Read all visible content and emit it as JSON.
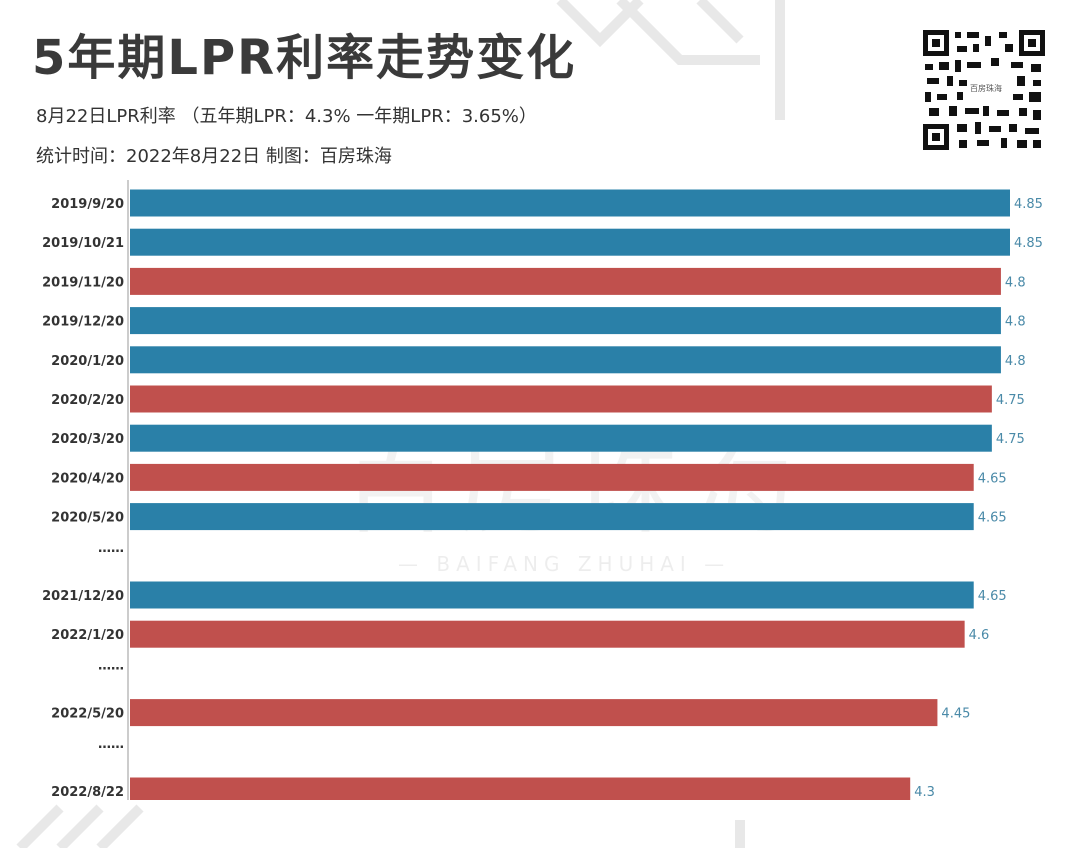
{
  "header": {
    "title": "5年期LPR利率走势变化",
    "subtitle": "8月22日LPR利率 （五年期LPR：4.3% 一年期LPR：3.65%）",
    "meta": "统计时间：2022年8月22日  制图：百房珠海",
    "qr_label": "百房珠海"
  },
  "watermark": {
    "main": "百房珠海",
    "sub": "— BAIFANG ZHUHAI —"
  },
  "colors": {
    "blue": "#2a80a8",
    "red": "#c0504d",
    "label": "#4a8aa8",
    "axis": "#999999"
  },
  "chart_data": {
    "type": "bar",
    "orientation": "horizontal",
    "categories": [
      "2019/9/20",
      "2019/10/21",
      "2019/11/20",
      "2019/12/20",
      "2020/1/20",
      "2020/2/20",
      "2020/3/20",
      "2020/4/20",
      "2020/5/20",
      "……",
      "2021/12/20",
      "2022/1/20",
      "……",
      "2022/5/20",
      "……",
      "2022/8/22"
    ],
    "values": [
      4.85,
      4.85,
      4.8,
      4.8,
      4.8,
      4.75,
      4.75,
      4.65,
      4.65,
      null,
      4.65,
      4.6,
      null,
      4.45,
      null,
      4.3
    ],
    "bar_colors": [
      "blue",
      "blue",
      "red",
      "blue",
      "blue",
      "red",
      "blue",
      "red",
      "blue",
      null,
      "blue",
      "red",
      null,
      "red",
      null,
      "red"
    ],
    "xlim": [
      0,
      4.85
    ],
    "title": "5年期LPR利率走势变化",
    "xlabel": "",
    "ylabel": ""
  }
}
